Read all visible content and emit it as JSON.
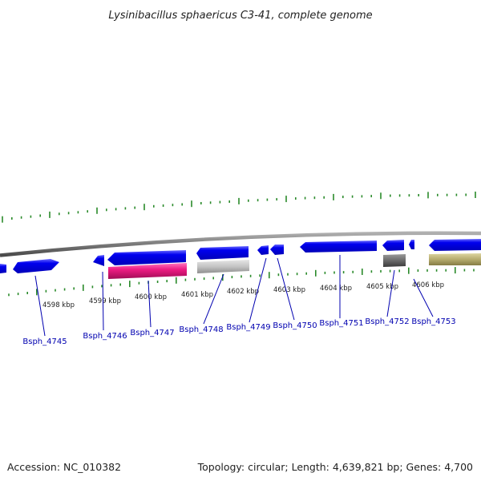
{
  "title": "Lysinibacillus sphaericus C3-41, complete genome",
  "accession_text": "Accession: NC_010382",
  "summary_text": "Topology: circular; Length: 4,639,821 bp; Genes: 4,700",
  "colors": {
    "backbone": "#8a8a8a",
    "tick": "#2a8a2a",
    "gene_label": "#0000b0",
    "cds_blue": "#0000ee",
    "magenta": "#ee1c84",
    "light_gray": "#c8c8c8",
    "dark_gray": "#6c6c6c",
    "khaki": "#b8ae70"
  },
  "kbp_labels": [
    "4598 kbp",
    "4599 kbp",
    "4600 kbp",
    "4601 kbp",
    "4602 kbp",
    "4603 kbp",
    "4604 kbp",
    "4605 kbp",
    "4606 kbp"
  ],
  "genes": [
    {
      "label": "Bsph_4745"
    },
    {
      "label": "Bsph_4746"
    },
    {
      "label": "Bsph_4747"
    },
    {
      "label": "Bsph_4748"
    },
    {
      "label": "Bsph_4749"
    },
    {
      "label": "Bsph_4750"
    },
    {
      "label": "Bsph_4751"
    },
    {
      "label": "Bsph_4752"
    },
    {
      "label": "Bsph_4753"
    }
  ]
}
